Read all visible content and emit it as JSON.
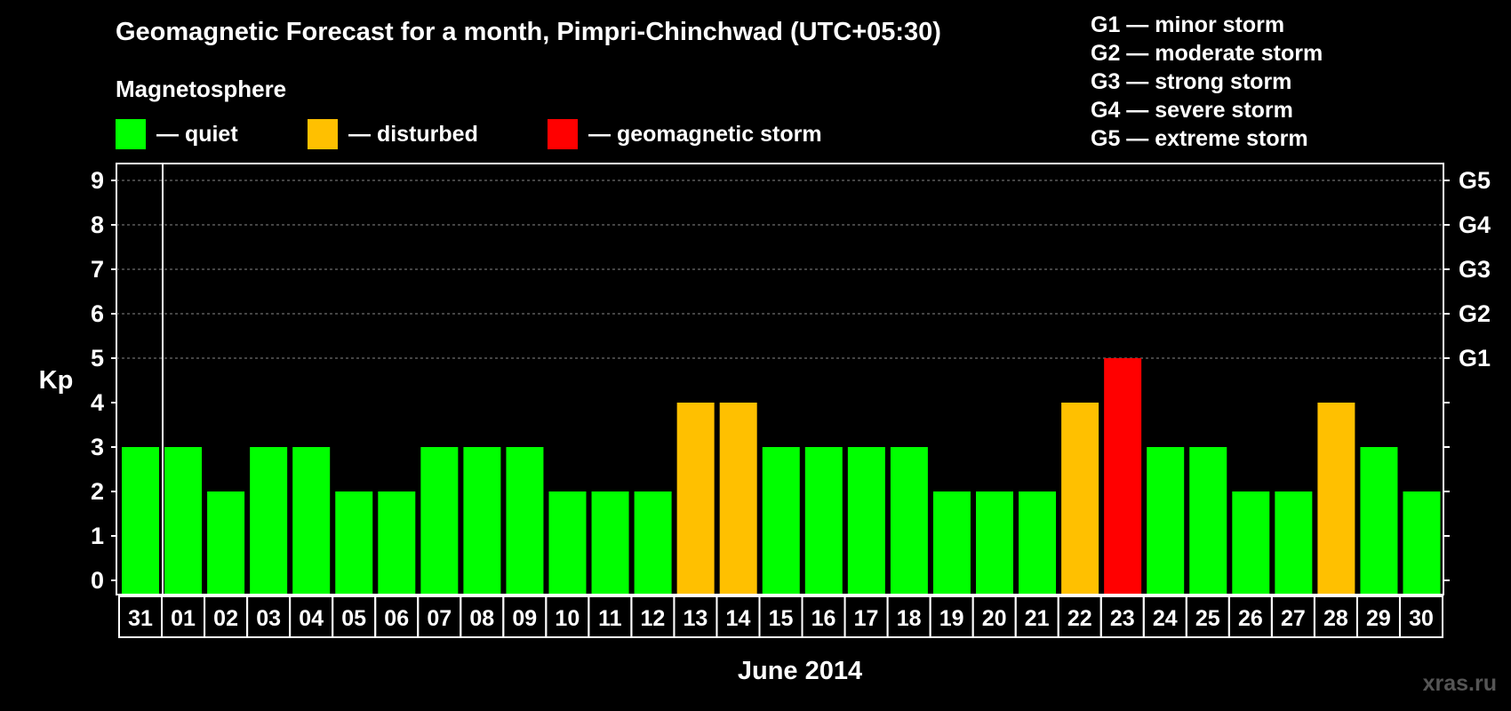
{
  "legend": {
    "heading": "Magnetosphere",
    "quiet": "— quiet",
    "disturbed": "— disturbed",
    "storm": "— geomagnetic storm"
  },
  "storm_scale": [
    "G1 — minor storm",
    "G2 — moderate storm",
    "G3 — strong storm",
    "G4 — severe storm",
    "G5 — extreme storm"
  ],
  "colors": {
    "quiet": "#00ff00",
    "disturbed": "#ffc000",
    "storm": "#ff0000",
    "grid": "#888888",
    "axis": "#ffffff"
  },
  "watermark": "xras.ru",
  "chart_data": {
    "type": "bar",
    "title": "Geomagnetic Forecast for a month, Pimpri-Chinchwad (UTC+05:30)",
    "ylabel": "Kp",
    "xlabel": "June 2014",
    "ylim": [
      0,
      9
    ],
    "yticks": [
      "0",
      "1",
      "2",
      "3",
      "4",
      "5",
      "6",
      "7",
      "8",
      "9"
    ],
    "right_ticks": [
      {
        "kp": 5,
        "label": "G1"
      },
      {
        "kp": 6,
        "label": "G2"
      },
      {
        "kp": 7,
        "label": "G3"
      },
      {
        "kp": 8,
        "label": "G4"
      },
      {
        "kp": 9,
        "label": "G5"
      }
    ],
    "categories": [
      "31",
      "01",
      "02",
      "03",
      "04",
      "05",
      "06",
      "07",
      "08",
      "09",
      "10",
      "11",
      "12",
      "13",
      "14",
      "15",
      "16",
      "17",
      "18",
      "19",
      "20",
      "21",
      "22",
      "23",
      "24",
      "25",
      "26",
      "27",
      "28",
      "29",
      "30"
    ],
    "values": [
      3,
      3,
      2,
      3,
      3,
      2,
      2,
      3,
      3,
      3,
      2,
      2,
      2,
      4,
      4,
      3,
      3,
      3,
      3,
      2,
      2,
      2,
      4,
      5,
      3,
      3,
      2,
      2,
      4,
      3,
      2
    ],
    "levels": [
      "quiet",
      "quiet",
      "quiet",
      "quiet",
      "quiet",
      "quiet",
      "quiet",
      "quiet",
      "quiet",
      "quiet",
      "quiet",
      "quiet",
      "quiet",
      "disturbed",
      "disturbed",
      "quiet",
      "quiet",
      "quiet",
      "quiet",
      "quiet",
      "quiet",
      "quiet",
      "disturbed",
      "storm",
      "quiet",
      "quiet",
      "quiet",
      "quiet",
      "disturbed",
      "quiet",
      "quiet"
    ]
  }
}
